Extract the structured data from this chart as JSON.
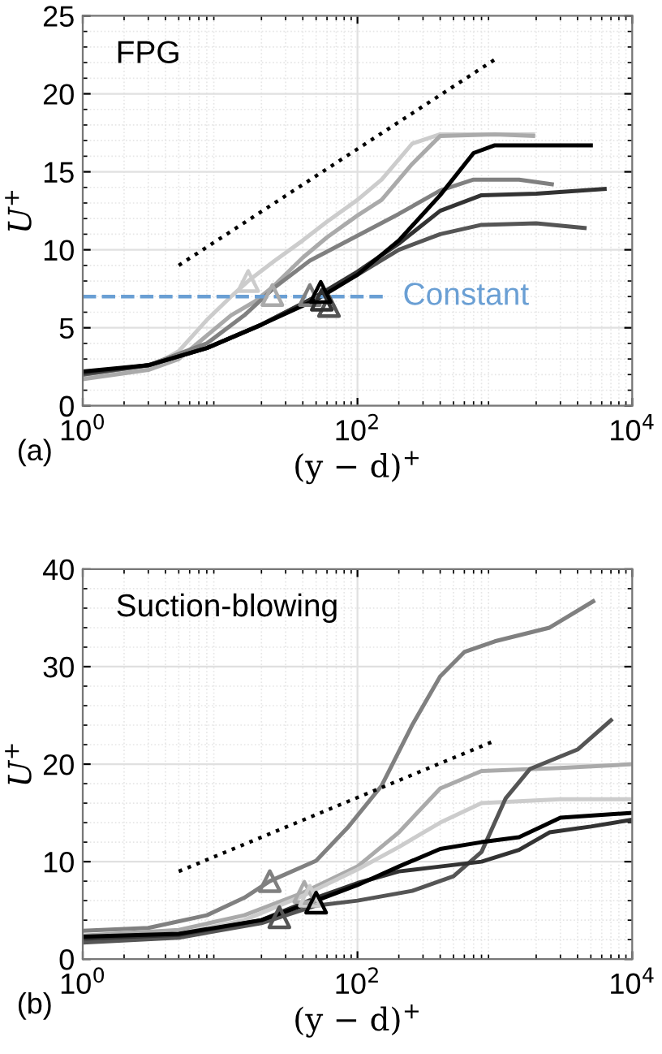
{
  "chart_data": [
    {
      "type": "line",
      "xlabel": "(y − d)$^{+}$",
      "ylabel": "U$^{+}$",
      "annotations": [
        "FPG",
        "(a)"
      ],
      "log": "x",
      "grid": true,
      "legend": false,
      "xlim": [
        1,
        10000
      ],
      "xticks": [
        {
          "value": 1,
          "label": "10$^{0}$"
        },
        {
          "value": 100,
          "label": "10$^{2}$"
        },
        {
          "value": 10000,
          "label": "10$^{4}$"
        }
      ],
      "ylim": [
        0,
        25
      ],
      "yticks": [
        0,
        5,
        10,
        15,
        20,
        25
      ],
      "series": [
        {
          "color": "#cccccc",
          "x": [
            1,
            3,
            5,
            8,
            12,
            16,
            25,
            40,
            60,
            100,
            150,
            250,
            400,
            1000,
            1900
          ],
          "values": [
            1.8,
            2.4,
            3.5,
            5.5,
            7,
            8,
            9.3,
            10.6,
            11.8,
            13.2,
            14.5,
            16.8,
            17.4,
            17.4,
            17.4
          ]
        },
        {
          "color": "#aaaaaa",
          "x": [
            1,
            3,
            5,
            8,
            12,
            18,
            24,
            40,
            60,
            100,
            150,
            250,
            400,
            1000,
            1900
          ],
          "values": [
            1.7,
            2.3,
            3,
            4.5,
            5.8,
            6.7,
            7.6,
            9.5,
            10.8,
            12.2,
            13.2,
            15.5,
            17.3,
            17.4,
            17.3
          ]
        },
        {
          "color": "#808080",
          "x": [
            1,
            3,
            8,
            15,
            25,
            45,
            100,
            200,
            400,
            700,
            1500,
            2600
          ],
          "values": [
            2.0,
            2.6,
            4,
            5.8,
            7.6,
            9.3,
            10.9,
            12.3,
            13.8,
            14.5,
            14.5,
            14.2
          ]
        },
        {
          "color": "#555555",
          "x": [
            1,
            3,
            8,
            20,
            50,
            100,
            200,
            400,
            800,
            2000,
            4500
          ],
          "values": [
            2.0,
            2.6,
            3.7,
            5.2,
            7,
            8.4,
            10,
            11,
            11.6,
            11.7,
            11.4
          ]
        },
        {
          "color": "#333333",
          "x": [
            1,
            3,
            8,
            20,
            50,
            100,
            200,
            400,
            800,
            2000,
            6300
          ],
          "values": [
            2.1,
            2.6,
            3.7,
            5.2,
            7,
            8.6,
            10.4,
            12.5,
            13.5,
            13.6,
            13.9
          ]
        },
        {
          "color": "#000000",
          "x": [
            1,
            3,
            8,
            20,
            50,
            100,
            200,
            400,
            700,
            1000,
            5000
          ],
          "values": [
            2.2,
            2.6,
            3.7,
            5.2,
            6.8,
            8.4,
            10.6,
            13.5,
            16.2,
            16.7,
            16.7
          ]
        },
        {
          "color": "#000000",
          "line_style": "dotted",
          "x": [
            5,
            1000
          ],
          "values": [
            9,
            22.2
          ]
        },
        {
          "name": "Constant",
          "color": "#6a9fd4",
          "line_style": "dashed",
          "x": [
            1,
            158
          ],
          "values": [
            7,
            7
          ]
        },
        {
          "type": "scatter",
          "marker": "triangle",
          "color": "#cccccc",
          "x": [
            16
          ],
          "values": [
            8
          ]
        },
        {
          "type": "scatter",
          "marker": "triangle",
          "color": "#aaaaaa",
          "x": [
            24
          ],
          "values": [
            7.1
          ]
        },
        {
          "type": "scatter",
          "marker": "triangle",
          "color": "#808080",
          "x": [
            45
          ],
          "values": [
            7.1
          ]
        },
        {
          "type": "scatter",
          "marker": "triangle",
          "color": "#555555",
          "x": [
            62
          ],
          "values": [
            6.4
          ]
        },
        {
          "type": "scatter",
          "marker": "triangle",
          "color": "#333333",
          "x": [
            55
          ],
          "values": [
            6.8
          ]
        },
        {
          "type": "scatter",
          "marker": "triangle",
          "color": "#000000",
          "x": [
            54
          ],
          "values": [
            7.3
          ]
        }
      ]
    },
    {
      "type": "line",
      "xlabel": "(y − d)$^{+}$",
      "ylabel": "U$^{+}$",
      "annotations": [
        "Suction-blowing",
        "(b)"
      ],
      "log": "x",
      "grid": true,
      "legend": false,
      "xlim": [
        1,
        10000
      ],
      "xticks": [
        {
          "value": 1,
          "label": "10$^{0}$"
        },
        {
          "value": 100,
          "label": "10$^{2}$"
        },
        {
          "value": 10000,
          "label": "10$^{4}$"
        }
      ],
      "ylim": [
        0,
        40
      ],
      "yticks": [
        0,
        10,
        20,
        30,
        40
      ],
      "series": [
        {
          "color": "#808080",
          "x": [
            1,
            3,
            8,
            15,
            23,
            50,
            85,
            150,
            250,
            400,
            600,
            1000,
            2500,
            5200
          ],
          "values": [
            2.9,
            3.2,
            4.5,
            6.3,
            8,
            10.1,
            13.5,
            17.8,
            24,
            29,
            31.5,
            32.6,
            34,
            36.7
          ]
        },
        {
          "color": "#aaaaaa",
          "x": [
            1,
            5,
            15,
            40,
            100,
            200,
            400,
            800,
            3000,
            10000
          ],
          "values": [
            2.4,
            3,
            4.5,
            6.8,
            9.5,
            13,
            17.5,
            19.3,
            19.6,
            20
          ]
        },
        {
          "color": "#cccccc",
          "x": [
            1,
            5,
            15,
            40,
            100,
            200,
            400,
            800,
            3000,
            10000
          ],
          "values": [
            2.0,
            2.6,
            4,
            6.5,
            9.2,
            11.5,
            14,
            16,
            16.4,
            16.4
          ]
        },
        {
          "color": "#555555",
          "x": [
            1,
            5,
            20,
            50,
            100,
            250,
            500,
            800,
            1200,
            1800,
            4000,
            7000
          ],
          "values": [
            1.7,
            2.2,
            3.7,
            5.5,
            6,
            7,
            8.5,
            11,
            16.5,
            19.5,
            21.5,
            24.5
          ]
        },
        {
          "color": "#333333",
          "x": [
            1,
            5,
            20,
            50,
            100,
            200,
            400,
            800,
            1500,
            2500,
            5000,
            10000
          ],
          "values": [
            2.1,
            2.5,
            4,
            6.3,
            7.8,
            9,
            9.5,
            10,
            11.2,
            13,
            13.6,
            14.3
          ]
        },
        {
          "color": "#000000",
          "x": [
            1,
            5,
            20,
            50,
            100,
            200,
            400,
            800,
            1500,
            3000,
            10000
          ],
          "values": [
            2.3,
            2.6,
            4,
            6,
            7.6,
            9.5,
            11.3,
            12,
            12.5,
            14.5,
            15
          ]
        },
        {
          "color": "#000000",
          "line_style": "dotted",
          "x": [
            5,
            1000
          ],
          "values": [
            9,
            22.4
          ]
        },
        {
          "type": "scatter",
          "marker": "triangle",
          "color": "#808080",
          "x": [
            23
          ],
          "values": [
            8
          ]
        },
        {
          "type": "scatter",
          "marker": "triangle",
          "color": "#aaaaaa",
          "x": [
            41
          ],
          "values": [
            6.9
          ]
        },
        {
          "type": "scatter",
          "marker": "triangle",
          "color": "#cccccc",
          "x": [
            45
          ],
          "values": [
            6.5
          ]
        },
        {
          "type": "scatter",
          "marker": "triangle",
          "color": "#555555",
          "x": [
            27
          ],
          "values": [
            4.3
          ]
        },
        {
          "type": "scatter",
          "marker": "triangle",
          "color": "#000000",
          "x": [
            50
          ],
          "values": [
            5.8
          ]
        }
      ]
    }
  ]
}
